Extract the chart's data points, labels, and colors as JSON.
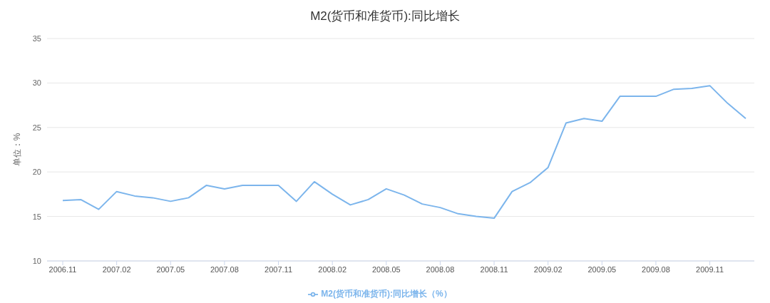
{
  "chart_data": {
    "type": "line",
    "title": "M2(货币和准货币):同比增长",
    "ylabel": "单位：%",
    "categories": [
      "2006.11",
      null,
      null,
      "2007.02",
      null,
      null,
      "2007.05",
      null,
      null,
      "2007.08",
      null,
      null,
      "2007.11",
      null,
      null,
      "2008.02",
      null,
      null,
      "2008.05",
      null,
      null,
      "2008.08",
      null,
      null,
      "2008.11",
      null,
      null,
      "2009.02",
      null,
      null,
      "2009.05",
      null,
      null,
      "2009.08",
      null,
      null,
      "2009.11",
      null,
      null
    ],
    "series": [
      {
        "name": "M2(货币和准货币):同比增长（%）",
        "color": "#7cb5ec",
        "values": [
          16.8,
          16.9,
          15.8,
          17.8,
          17.3,
          17.1,
          16.7,
          17.1,
          18.5,
          18.1,
          18.5,
          18.5,
          18.5,
          16.7,
          18.9,
          17.5,
          16.3,
          16.9,
          18.1,
          17.4,
          16.4,
          16.0,
          15.3,
          15.0,
          14.8,
          17.8,
          18.8,
          20.5,
          25.5,
          26.0,
          25.7,
          28.5,
          28.5,
          28.5,
          29.3,
          29.4,
          29.7,
          27.7,
          26.0
        ]
      }
    ],
    "ylim": [
      10,
      35
    ],
    "yticks": [
      10,
      15,
      20,
      25,
      30,
      35
    ],
    "grid": "y",
    "legend": "bottom",
    "marker": "none",
    "line_style": "solid"
  }
}
